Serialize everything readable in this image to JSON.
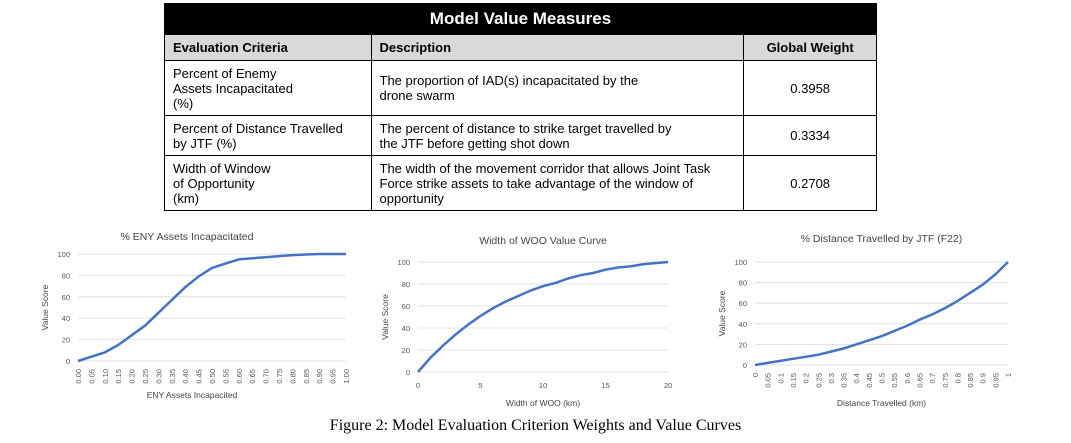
{
  "table": {
    "title": "Model Value Measures",
    "headers": [
      "Evaluation Criteria",
      "Description",
      "Global Weight"
    ],
    "rows": [
      {
        "criteria": [
          "Percent of Enemy",
          "Assets Incapacitated",
          "(%)"
        ],
        "description": [
          "The proportion of IAD(s) incapacitated by the",
          "drone swarm"
        ],
        "weight": "0.3958"
      },
      {
        "criteria": [
          "Percent of Distance Travelled",
          "by JTF (%)"
        ],
        "description": [
          "The percent of distance to strike target travelled by",
          "the JTF before getting shot down"
        ],
        "weight": "0.3334"
      },
      {
        "criteria": [
          "Width of Window",
          "of Opportunity",
          "(km)"
        ],
        "description": [
          "The width of the movement corridor that allows Joint Task",
          "Force strike assets to take advantage of the window of",
          "opportunity"
        ],
        "weight": "0.2708"
      }
    ]
  },
  "chart_data": [
    {
      "type": "line",
      "title": "% ENY Assets Incapacitated",
      "xlabel": "ENY Assets Incapacited",
      "ylabel": "Value Score",
      "x_tick_labels": [
        "0.00",
        "0.05",
        "0.10",
        "0.15",
        "0.20",
        "0.25",
        "0.30",
        "0.35",
        "0.40",
        "0.45",
        "0.50",
        "0.55",
        "0.60",
        "0.65",
        "0.70",
        "0.75",
        "0.80",
        "0.85",
        "0.90",
        "0.95",
        "1.00"
      ],
      "y_ticks": [
        0,
        20,
        40,
        60,
        80,
        100
      ],
      "xlim": [
        0,
        1
      ],
      "ylim": [
        0,
        100
      ],
      "grid": true,
      "x": [
        0,
        0.05,
        0.1,
        0.15,
        0.2,
        0.25,
        0.3,
        0.35,
        0.4,
        0.45,
        0.5,
        0.55,
        0.6,
        0.65,
        0.7,
        0.75,
        0.8,
        0.85,
        0.9,
        0.95,
        1.0
      ],
      "y": [
        0,
        4,
        8,
        15,
        24,
        33,
        45,
        57,
        69,
        79,
        87,
        91,
        95,
        96,
        97,
        98,
        99,
        99.5,
        100,
        100,
        100
      ]
    },
    {
      "type": "line",
      "title": "Width of WOO Value Curve",
      "xlabel": "Width of WOO (km)",
      "ylabel": "Value Score",
      "x_tick_labels": [
        "0",
        "5",
        "10",
        "15",
        "20"
      ],
      "y_ticks": [
        0,
        20,
        40,
        60,
        80,
        100
      ],
      "xlim": [
        0,
        20
      ],
      "ylim": [
        0,
        100
      ],
      "grid": true,
      "x": [
        0,
        1,
        2,
        3,
        4,
        5,
        6,
        7,
        8,
        9,
        10,
        11,
        12,
        13,
        14,
        15,
        16,
        17,
        18,
        19,
        20
      ],
      "y": [
        0,
        13,
        24,
        34,
        43,
        51,
        58,
        64,
        69,
        74,
        78,
        81,
        85,
        88,
        90,
        93,
        95,
        96,
        98,
        99,
        100
      ]
    },
    {
      "type": "line",
      "title": "% Distance Travelled by JTF (F22)",
      "xlabel": "Distance Travelled (km)",
      "ylabel": "Value Score",
      "x_tick_labels": [
        "0",
        "0.05",
        "0.1",
        "0.15",
        "0.2",
        "0.25",
        "0.3",
        "0.35",
        "0.4",
        "0.45",
        "0.5",
        "0.55",
        "0.6",
        "0.65",
        "0.7",
        "0.75",
        "0.8",
        "0.85",
        "0.9",
        "0.95",
        "1"
      ],
      "y_ticks": [
        0,
        20,
        40,
        60,
        80,
        100
      ],
      "xlim": [
        0,
        1
      ],
      "ylim": [
        0,
        100
      ],
      "grid": true,
      "x": [
        0,
        0.05,
        0.1,
        0.15,
        0.2,
        0.25,
        0.3,
        0.35,
        0.4,
        0.45,
        0.5,
        0.55,
        0.6,
        0.65,
        0.7,
        0.75,
        0.8,
        0.85,
        0.9,
        0.95,
        1.0
      ],
      "y": [
        0,
        2,
        4,
        6,
        8,
        10,
        13,
        16,
        20,
        24,
        28,
        33,
        38,
        44,
        49,
        55,
        62,
        70,
        78,
        88,
        100
      ]
    }
  ],
  "caption": "Figure 2: Model Evaluation Criterion Weights and Value Curves",
  "colors": {
    "series": "#4472c4",
    "grid": "#d9d9d9",
    "header_bg": "#000000",
    "column_header_bg": "#d9d9d9"
  }
}
